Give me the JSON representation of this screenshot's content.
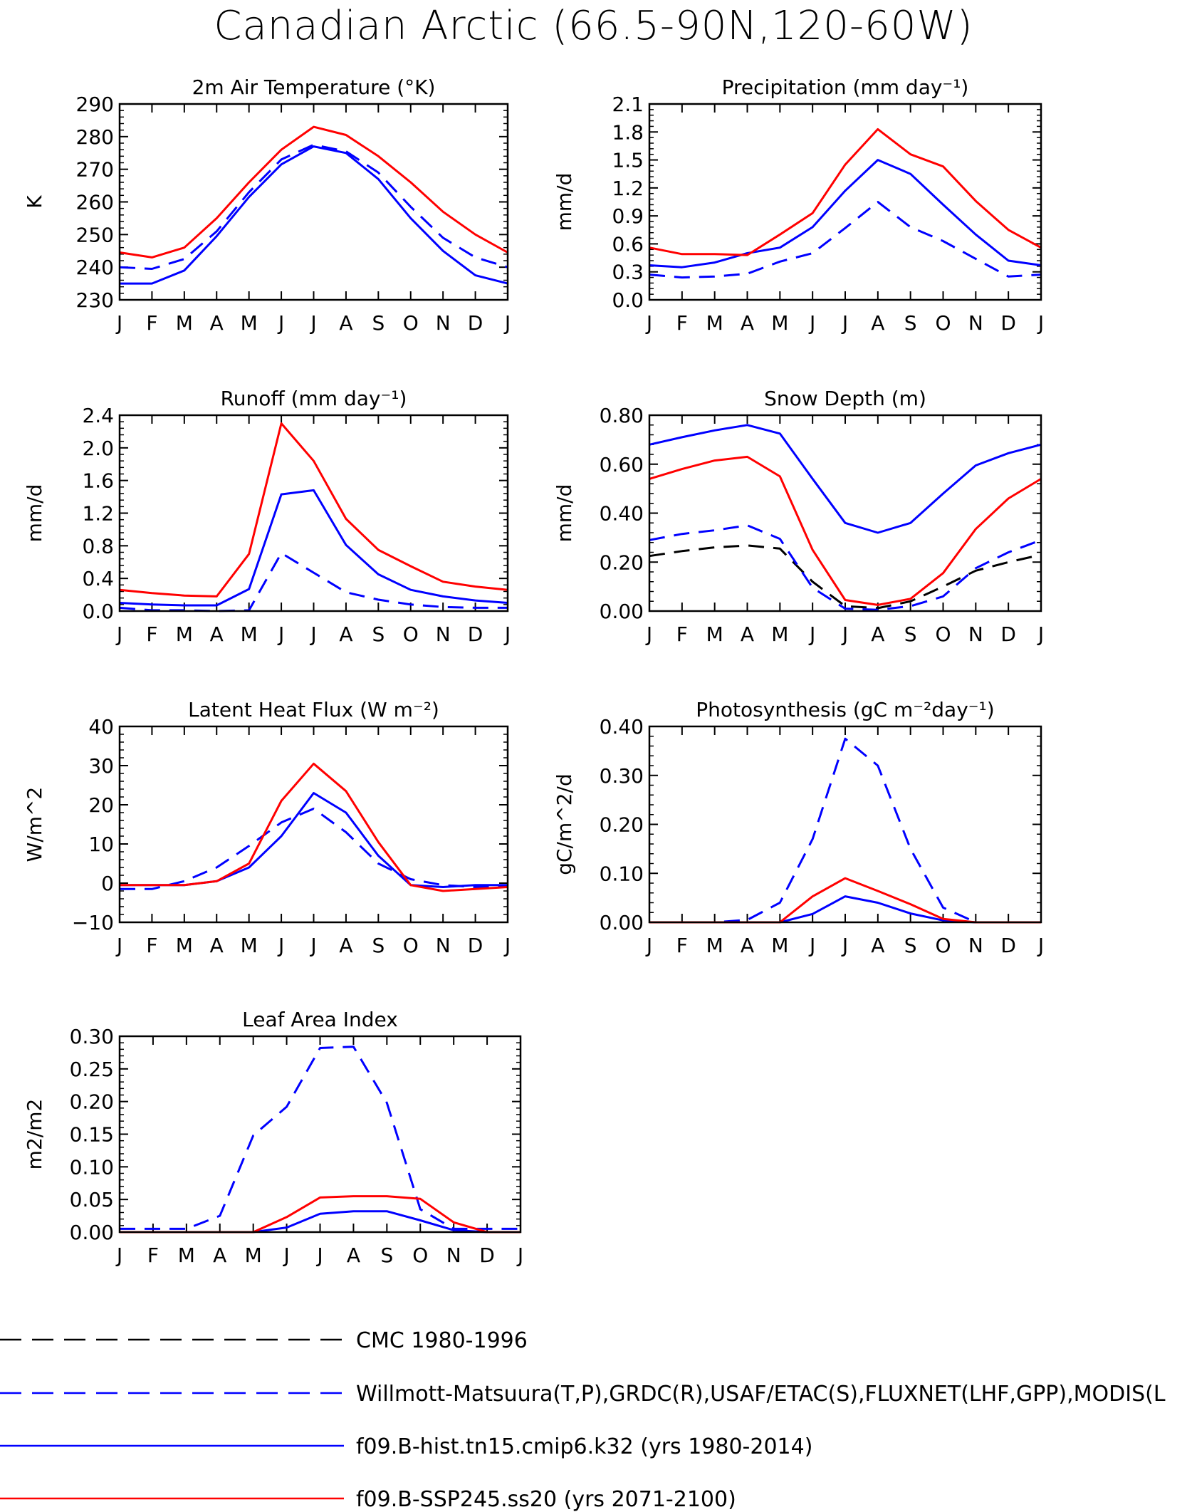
{
  "title": "Canadian Arctic (66.5-90N,120-60W)",
  "colors": {
    "obs_cmc": "#000000",
    "obs_other": "#0000ff",
    "model_hist": "#0000ff",
    "model_future": "#ff0000"
  },
  "months": [
    "J",
    "F",
    "M",
    "A",
    "M",
    "J",
    "J",
    "A",
    "S",
    "O",
    "N",
    "D",
    "J"
  ],
  "legend": [
    {
      "label": "CMC 1980-1996",
      "color": "#000000",
      "dash": "dashed"
    },
    {
      "label": "Willmott-Matsuura(T,P),GRDC(R),USAF/ETAC(S),FLUXNET(LHF,GPP),MODIS(L",
      "color": "#0000ff",
      "dash": "dashed"
    },
    {
      "label": "f09.B-hist.tn15.cmip6.k32 (yrs 1980-2014)",
      "color": "#0000ff",
      "dash": "solid"
    },
    {
      "label": "f09.B-SSP245.ss20 (yrs 2071-2100)",
      "color": "#ff0000",
      "dash": "solid"
    }
  ],
  "chart_data": [
    {
      "type": "line",
      "title": "2m Air Temperature (°K)",
      "ylabel": "K",
      "ylim": [
        230,
        290
      ],
      "yticks": [
        "230",
        "240",
        "250",
        "260",
        "270",
        "280",
        "290"
      ],
      "x": [
        "J",
        "F",
        "M",
        "A",
        "M",
        "J",
        "J",
        "A",
        "S",
        "O",
        "N",
        "D",
        "J"
      ],
      "series": [
        {
          "style": "obs_other",
          "values": [
            240,
            239.5,
            242.5,
            251,
            263,
            273,
            277.5,
            275.5,
            269,
            258.5,
            249,
            243,
            240
          ]
        },
        {
          "style": "model_hist",
          "values": [
            235,
            235,
            239,
            249.5,
            261.5,
            271.5,
            277,
            275,
            267,
            255,
            245,
            237.5,
            235
          ]
        },
        {
          "style": "model_future",
          "values": [
            244.5,
            243,
            246,
            255,
            266,
            276,
            283,
            280.5,
            274,
            266,
            257,
            250,
            244.5
          ]
        }
      ]
    },
    {
      "type": "line",
      "title": "Precipitation (mm day⁻¹)",
      "ylabel": "mm/d",
      "ylim": [
        0,
        2.1
      ],
      "yticks": [
        "0.0",
        "0.3",
        "0.6",
        "0.9",
        "1.2",
        "1.5",
        "1.8",
        "2.1"
      ],
      "x": [
        "J",
        "F",
        "M",
        "A",
        "M",
        "J",
        "J",
        "A",
        "S",
        "O",
        "N",
        "D",
        "J"
      ],
      "series": [
        {
          "style": "obs_other",
          "values": [
            0.27,
            0.24,
            0.25,
            0.28,
            0.41,
            0.5,
            0.77,
            1.05,
            0.78,
            0.63,
            0.44,
            0.25,
            0.27
          ]
        },
        {
          "style": "model_hist",
          "values": [
            0.37,
            0.35,
            0.4,
            0.5,
            0.56,
            0.78,
            1.17,
            1.5,
            1.35,
            1.02,
            0.7,
            0.42,
            0.37
          ]
        },
        {
          "style": "model_future",
          "values": [
            0.56,
            0.49,
            0.49,
            0.48,
            0.7,
            0.93,
            1.45,
            1.83,
            1.56,
            1.43,
            1.06,
            0.75,
            0.56
          ]
        }
      ]
    },
    {
      "type": "line",
      "title": "Runoff (mm day⁻¹)",
      "ylabel": "mm/d",
      "ylim": [
        0,
        2.4
      ],
      "yticks": [
        "0.0",
        "0.4",
        "0.8",
        "1.2",
        "1.6",
        "2.0",
        "2.4"
      ],
      "x": [
        "J",
        "F",
        "M",
        "A",
        "M",
        "J",
        "J",
        "A",
        "S",
        "O",
        "N",
        "D",
        "J"
      ],
      "series": [
        {
          "style": "obs_other",
          "values": [
            0.04,
            0.01,
            0.01,
            0.0,
            0.01,
            0.71,
            0.47,
            0.23,
            0.14,
            0.08,
            0.05,
            0.04,
            0.04
          ]
        },
        {
          "style": "model_hist",
          "values": [
            0.1,
            0.08,
            0.07,
            0.07,
            0.27,
            1.43,
            1.48,
            0.81,
            0.45,
            0.26,
            0.18,
            0.13,
            0.1
          ]
        },
        {
          "style": "model_future",
          "values": [
            0.26,
            0.22,
            0.19,
            0.18,
            0.7,
            2.3,
            1.84,
            1.13,
            0.75,
            0.55,
            0.36,
            0.3,
            0.26
          ]
        }
      ]
    },
    {
      "type": "line",
      "title": "Snow Depth (m)",
      "ylabel": "mm/d",
      "ylim": [
        0,
        0.8
      ],
      "yticks": [
        "0.00",
        "0.20",
        "0.40",
        "0.60",
        "0.80"
      ],
      "x": [
        "J",
        "F",
        "M",
        "A",
        "M",
        "J",
        "J",
        "A",
        "S",
        "O",
        "N",
        "D",
        "J"
      ],
      "series": [
        {
          "style": "obs_cmc",
          "values": [
            0.225,
            0.245,
            0.26,
            0.268,
            0.255,
            0.12,
            0.02,
            0.012,
            0.04,
            0.1,
            0.165,
            0.2,
            0.23
          ]
        },
        {
          "style": "obs_other",
          "values": [
            0.29,
            0.315,
            0.33,
            0.35,
            0.295,
            0.095,
            0.01,
            0.005,
            0.02,
            0.06,
            0.175,
            0.24,
            0.29
          ]
        },
        {
          "style": "model_hist",
          "values": [
            0.68,
            0.71,
            0.738,
            0.76,
            0.725,
            0.54,
            0.36,
            0.32,
            0.36,
            0.48,
            0.595,
            0.645,
            0.68
          ]
        },
        {
          "style": "model_future",
          "values": [
            0.54,
            0.58,
            0.615,
            0.63,
            0.55,
            0.25,
            0.045,
            0.025,
            0.05,
            0.155,
            0.335,
            0.46,
            0.54
          ]
        }
      ]
    },
    {
      "type": "line",
      "title": "Latent Heat Flux (W m⁻²)",
      "ylabel": "W/m^2",
      "ylim": [
        -10,
        40
      ],
      "yticks": [
        "−10",
        "0",
        "10",
        "20",
        "30",
        "40"
      ],
      "x": [
        "J",
        "F",
        "M",
        "A",
        "M",
        "J",
        "J",
        "A",
        "S",
        "O",
        "N",
        "D",
        "J"
      ],
      "series": [
        {
          "style": "obs_other",
          "values": [
            -1.5,
            -1.5,
            0.5,
            4,
            9.5,
            15.5,
            19,
            13,
            5,
            1,
            -0.5,
            -1,
            -1
          ]
        },
        {
          "style": "model_hist",
          "values": [
            -0.5,
            -0.5,
            -0.5,
            0.5,
            4,
            12,
            23,
            18,
            7,
            -0.5,
            -1,
            -0.5,
            -0.5
          ]
        },
        {
          "style": "model_future",
          "values": [
            -0.5,
            -0.5,
            -0.5,
            0.5,
            5,
            21,
            30.5,
            23.5,
            10.5,
            -0.5,
            -2,
            -1.5,
            -1
          ]
        }
      ]
    },
    {
      "type": "line",
      "title": "Photosynthesis (gC m⁻²day⁻¹)",
      "ylabel": "gC/m^2/d",
      "ylim": [
        0,
        0.4
      ],
      "yticks": [
        "0.00",
        "0.10",
        "0.20",
        "0.30",
        "0.40"
      ],
      "x": [
        "J",
        "F",
        "M",
        "A",
        "M",
        "J",
        "J",
        "A",
        "S",
        "O",
        "N",
        "D",
        "J"
      ],
      "series": [
        {
          "style": "obs_other",
          "values": [
            0,
            0,
            0,
            0.005,
            0.04,
            0.17,
            0.375,
            0.32,
            0.15,
            0.03,
            0,
            0,
            0
          ]
        },
        {
          "style": "model_hist",
          "values": [
            0,
            0,
            0,
            0,
            0,
            0.017,
            0.053,
            0.04,
            0.018,
            0.004,
            0,
            0,
            0
          ]
        },
        {
          "style": "model_future",
          "values": [
            0,
            0,
            0,
            0,
            0,
            0.053,
            0.09,
            0.064,
            0.037,
            0.007,
            0,
            0,
            0
          ]
        }
      ]
    },
    {
      "type": "line",
      "title": "Leaf Area Index",
      "ylabel": "m2/m2",
      "ylim": [
        0,
        0.3
      ],
      "yticks": [
        "0.00",
        "0.05",
        "0.10",
        "0.15",
        "0.20",
        "0.25",
        "0.30"
      ],
      "x": [
        "J",
        "F",
        "M",
        "A",
        "M",
        "J",
        "J",
        "A",
        "S",
        "O",
        "N",
        "D",
        "J"
      ],
      "series": [
        {
          "style": "obs_other",
          "values": [
            0.005,
            0.005,
            0.005,
            0.025,
            0.148,
            0.192,
            0.282,
            0.284,
            0.198,
            0.035,
            0.005,
            0.005,
            0.005
          ]
        },
        {
          "style": "model_hist",
          "values": [
            0,
            0,
            0,
            0,
            0,
            0.007,
            0.028,
            0.032,
            0.032,
            0.018,
            0.003,
            0,
            0
          ]
        },
        {
          "style": "model_future",
          "values": [
            0,
            0,
            0,
            0,
            0,
            0.023,
            0.053,
            0.055,
            0.055,
            0.051,
            0.015,
            0,
            0
          ]
        }
      ]
    }
  ]
}
